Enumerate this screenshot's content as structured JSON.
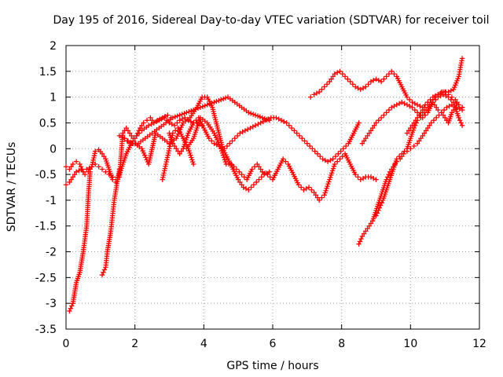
{
  "chart_data": {
    "type": "scatter",
    "title": "Day 195 of 2016, Sidereal Day-to-day VTEC variation (SDTVAR) for receiver toil",
    "xlabel": "GPS time / hours",
    "ylabel": "SDTVAR / TECUs",
    "xlim": [
      0,
      12
    ],
    "ylim": [
      -3.5,
      2
    ],
    "xticks": [
      0,
      2,
      4,
      6,
      8,
      10,
      12
    ],
    "xtick_labels": [
      "0",
      "2",
      "4",
      "6",
      "8",
      "10",
      "12"
    ],
    "yticks": [
      -3.5,
      -3,
      -2.5,
      -2,
      -1.5,
      -1,
      -0.5,
      0,
      0.5,
      1,
      1.5,
      2
    ],
    "ytick_labels": [
      "-3.5",
      "-3",
      "-2.5",
      "-2",
      "-1.5",
      "-1",
      "-0.5",
      "0",
      "0.5",
      "1",
      "1.5",
      "2"
    ],
    "grid": true,
    "marker": "plus",
    "color": "#ff0000",
    "series": [
      {
        "x": [
          0.0,
          0.1,
          0.2,
          0.3,
          0.45,
          0.55,
          0.65,
          0.75,
          0.85,
          0.95,
          1.05,
          1.15,
          1.25,
          1.35,
          1.45,
          1.55,
          1.65,
          1.75,
          1.9,
          2.05,
          2.2,
          2.4,
          2.55,
          2.7,
          2.85,
          3.0,
          3.15,
          3.3,
          3.45,
          3.55,
          3.7,
          3.8,
          3.95
        ],
        "y": [
          -0.7,
          -0.65,
          -0.55,
          -0.45,
          -0.4,
          -0.5,
          -0.45,
          -0.35,
          -0.3,
          -0.35,
          -0.4,
          -0.45,
          -0.5,
          -0.55,
          -0.6,
          -0.5,
          -0.3,
          -0.1,
          0.1,
          0.25,
          0.35,
          0.45,
          0.5,
          0.55,
          0.6,
          0.5,
          0.45,
          0.55,
          0.6,
          0.55,
          0.5,
          0.5,
          0.45
        ]
      },
      {
        "x": [
          0.0,
          0.1,
          0.2,
          0.3,
          0.4,
          0.5,
          0.6,
          0.75,
          0.85,
          0.95,
          1.05,
          1.15,
          1.25,
          1.35,
          1.45,
          1.55,
          1.65,
          1.75,
          1.85,
          1.95,
          2.05,
          2.15,
          2.25,
          2.35,
          2.45,
          2.55,
          2.65,
          2.8,
          2.95,
          3.05
        ],
        "y": [
          -0.35,
          -0.4,
          -0.3,
          -0.25,
          -0.3,
          -0.45,
          -0.4,
          -0.35,
          -0.05,
          -0.02,
          -0.1,
          -0.2,
          -0.4,
          -0.6,
          -0.65,
          -0.55,
          0.3,
          0.4,
          0.3,
          0.2,
          0.25,
          0.4,
          0.5,
          0.55,
          0.6,
          0.5,
          0.55,
          0.6,
          0.65,
          0.6
        ]
      },
      {
        "x": [
          0.1,
          0.2,
          0.3,
          0.4,
          0.5,
          0.6,
          0.65,
          0.7
        ],
        "y": [
          -3.15,
          -3.0,
          -2.6,
          -2.4,
          -2.0,
          -1.5,
          -0.9,
          -0.45
        ]
      },
      {
        "x": [
          1.05,
          1.15,
          1.2,
          1.25,
          1.3,
          1.35,
          1.4,
          1.5,
          1.55
        ],
        "y": [
          -2.45,
          -2.3,
          -2.0,
          -1.8,
          -1.6,
          -1.3,
          -1.0,
          -0.6,
          -0.4
        ]
      },
      {
        "x": [
          1.55,
          1.7,
          1.85,
          2.0,
          2.2,
          2.4,
          2.6,
          2.8,
          3.0,
          3.2,
          3.4,
          3.6,
          3.8,
          3.95,
          4.1,
          4.25,
          4.4,
          4.55,
          4.7,
          4.85,
          5.0,
          5.15,
          5.3,
          5.45,
          5.6,
          5.75,
          5.9
        ],
        "y": [
          0.25,
          0.2,
          0.1,
          0.1,
          0.0,
          -0.3,
          0.3,
          0.2,
          0.1,
          0.2,
          0.5,
          0.6,
          0.8,
          1.0,
          1.0,
          0.8,
          0.4,
          0.0,
          -0.2,
          -0.4,
          -0.6,
          -0.75,
          -0.8,
          -0.7,
          -0.6,
          -0.5,
          -0.45
        ]
      },
      {
        "x": [
          1.7,
          1.8,
          1.95,
          2.1,
          2.3,
          2.5,
          2.7,
          2.9,
          3.1,
          3.3,
          3.5,
          3.7,
          3.9,
          4.1,
          4.3,
          4.5,
          4.7,
          4.9,
          5.1,
          5.3,
          5.5,
          5.7,
          5.9
        ],
        "y": [
          0.2,
          0.15,
          0.1,
          0.1,
          0.2,
          0.3,
          0.4,
          0.5,
          0.6,
          0.65,
          0.7,
          0.75,
          0.8,
          0.85,
          0.9,
          0.95,
          1.0,
          0.9,
          0.8,
          0.7,
          0.65,
          0.6,
          0.55
        ]
      },
      {
        "x": [
          2.8,
          2.9,
          3.0,
          3.1,
          3.25,
          3.4,
          3.55,
          3.7
        ],
        "y": [
          -0.6,
          -0.3,
          0.0,
          0.3,
          0.4,
          0.2,
          0.0,
          -0.3
        ]
      },
      {
        "x": [
          3.0,
          3.1,
          3.2,
          3.3,
          3.4,
          3.55,
          3.7,
          3.85,
          4.0,
          4.15,
          4.3,
          4.45,
          4.6,
          4.75,
          4.9,
          5.05,
          5.2,
          5.35,
          5.5,
          5.65,
          5.8,
          5.95,
          6.1,
          6.25,
          6.4,
          6.55,
          6.7,
          6.85,
          7.0,
          7.15,
          7.3,
          7.45,
          7.6,
          7.75,
          7.9,
          8.05,
          8.2,
          8.35,
          8.5
        ],
        "y": [
          0.3,
          0.1,
          0.0,
          -0.1,
          0.0,
          0.3,
          0.5,
          0.6,
          0.4,
          0.2,
          0.1,
          0.05,
          0.0,
          0.1,
          0.2,
          0.3,
          0.35,
          0.4,
          0.45,
          0.5,
          0.55,
          0.6,
          0.6,
          0.55,
          0.5,
          0.4,
          0.3,
          0.2,
          0.1,
          0.0,
          -0.1,
          -0.2,
          -0.25,
          -0.2,
          -0.1,
          0.0,
          0.1,
          0.3,
          0.5
        ]
      },
      {
        "x": [
          3.5,
          3.7,
          3.9,
          4.1,
          4.3,
          4.5,
          4.65,
          4.8,
          4.95,
          5.1,
          5.25,
          5.4,
          5.55,
          5.7,
          5.85,
          6.0,
          6.15,
          6.3,
          6.45,
          6.6,
          6.75,
          6.9,
          7.05,
          7.2,
          7.35,
          7.5,
          7.65,
          7.8,
          7.95,
          8.1,
          8.25,
          8.4,
          8.55,
          8.7,
          8.85,
          9.0
        ],
        "y": [
          0.0,
          0.2,
          0.6,
          0.5,
          0.3,
          0.0,
          -0.3,
          -0.3,
          -0.4,
          -0.5,
          -0.6,
          -0.4,
          -0.3,
          -0.45,
          -0.5,
          -0.6,
          -0.4,
          -0.2,
          -0.3,
          -0.5,
          -0.7,
          -0.8,
          -0.75,
          -0.85,
          -1.0,
          -0.9,
          -0.6,
          -0.3,
          -0.2,
          -0.1,
          -0.3,
          -0.5,
          -0.6,
          -0.55,
          -0.55,
          -0.6
        ]
      },
      {
        "x": [
          7.1,
          7.2,
          7.35,
          7.5,
          7.65,
          7.8,
          7.95,
          8.1,
          8.25,
          8.4,
          8.55,
          8.7,
          8.85,
          9.0,
          9.15,
          9.3,
          9.45,
          9.6,
          9.75,
          9.9,
          10.05,
          10.2,
          10.35,
          10.5,
          10.65,
          10.8,
          10.95,
          11.1,
          11.25,
          11.4,
          11.5
        ],
        "y": [
          1.0,
          1.05,
          1.1,
          1.2,
          1.3,
          1.45,
          1.5,
          1.4,
          1.3,
          1.2,
          1.15,
          1.2,
          1.3,
          1.35,
          1.3,
          1.4,
          1.5,
          1.4,
          1.2,
          1.0,
          0.9,
          0.85,
          0.8,
          0.9,
          1.0,
          1.05,
          1.1,
          1.1,
          1.15,
          1.4,
          1.75
        ]
      },
      {
        "x": [
          8.5,
          8.6,
          8.7,
          8.8,
          8.9,
          9.0,
          9.1,
          9.2,
          9.3,
          9.4,
          9.5,
          9.6,
          9.7,
          9.8,
          9.9,
          10.0,
          10.1,
          10.2,
          10.3,
          10.45,
          10.6,
          10.75,
          10.9,
          11.05,
          11.2,
          11.35,
          11.5
        ],
        "y": [
          -1.85,
          -1.7,
          -1.6,
          -1.5,
          -1.4,
          -1.2,
          -1.0,
          -0.8,
          -0.6,
          -0.45,
          -0.35,
          -0.25,
          -0.2,
          -0.1,
          -0.05,
          0.0,
          0.05,
          0.1,
          0.2,
          0.35,
          0.5,
          0.6,
          0.7,
          0.8,
          0.85,
          0.8,
          0.75
        ]
      },
      {
        "x": [
          8.6,
          8.7,
          8.85,
          9.0,
          9.15,
          9.3,
          9.45,
          9.6,
          9.75,
          9.9,
          10.05,
          10.2,
          10.35,
          10.5,
          10.65,
          10.8,
          10.95,
          11.1,
          11.25,
          11.4,
          11.5
        ],
        "y": [
          0.1,
          0.2,
          0.35,
          0.5,
          0.6,
          0.7,
          0.8,
          0.85,
          0.9,
          0.85,
          0.8,
          0.7,
          0.6,
          0.7,
          0.9,
          1.0,
          1.05,
          1.0,
          0.9,
          0.85,
          0.8
        ]
      },
      {
        "x": [
          9.0,
          9.1,
          9.2,
          9.3,
          9.4,
          9.5,
          9.6,
          9.75,
          9.9,
          10.0,
          10.1,
          10.2,
          10.3,
          10.4,
          10.5,
          10.6,
          10.7,
          10.8,
          10.9,
          11.0,
          11.1,
          11.2,
          11.3,
          11.4,
          11.5
        ],
        "y": [
          -1.3,
          -1.15,
          -1.0,
          -0.8,
          -0.6,
          -0.4,
          -0.2,
          -0.1,
          0.0,
          0.2,
          0.4,
          0.55,
          0.6,
          0.7,
          0.8,
          0.9,
          0.85,
          0.75,
          0.7,
          0.6,
          0.5,
          0.7,
          0.8,
          0.6,
          0.45
        ]
      },
      {
        "x": [
          9.9,
          10.0,
          10.1,
          10.2,
          10.3,
          10.4,
          10.5,
          10.6,
          10.7,
          10.8,
          10.9,
          11.0,
          11.1,
          11.2,
          11.3,
          11.4,
          11.5
        ],
        "y": [
          0.3,
          0.4,
          0.5,
          0.6,
          0.7,
          0.8,
          0.85,
          0.9,
          1.0,
          1.05,
          1.1,
          1.1,
          1.05,
          1.0,
          0.95,
          0.85,
          0.8
        ]
      }
    ]
  }
}
